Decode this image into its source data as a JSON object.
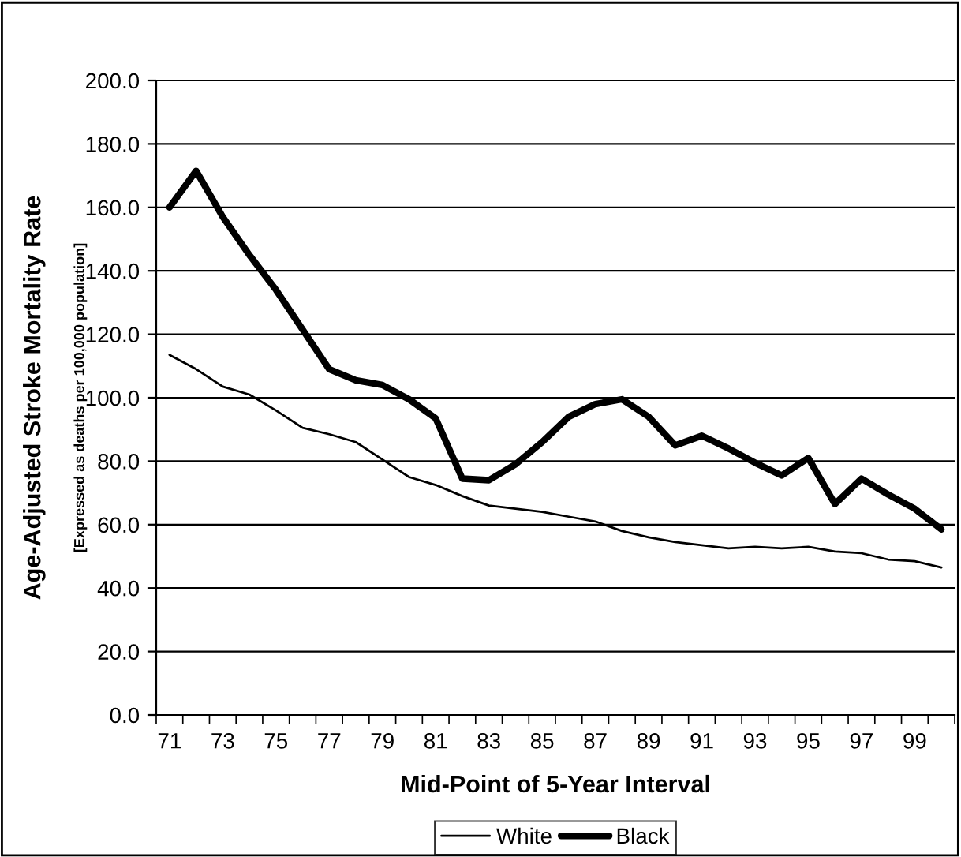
{
  "chart_data": {
    "type": "line",
    "xlabel": "Mid-Point of 5-Year Interval",
    "ylabel": "Age-Adjusted Stroke Mortality Rate",
    "subtitle": "[Expressed as deaths per 100,000 population]",
    "categories": [
      "71",
      null,
      "73",
      null,
      "75",
      null,
      "77",
      null,
      "79",
      null,
      "81",
      null,
      "83",
      null,
      "85",
      null,
      "87",
      null,
      "89",
      null,
      "91",
      null,
      "93",
      null,
      "95",
      null,
      "97",
      null,
      "99",
      null
    ],
    "series": [
      {
        "name": "White",
        "color": "#000000",
        "values": [
          113.5,
          109,
          103.5,
          101,
          96,
          90.5,
          88.5,
          86,
          80.5,
          75,
          72.5,
          69,
          66,
          65,
          64,
          62.5,
          61,
          58,
          56,
          54.5,
          53.5,
          52.5,
          53,
          52.5,
          53,
          51.5,
          51,
          49,
          48.5,
          46.5
        ]
      },
      {
        "name": "Black",
        "color": "#000000",
        "values": [
          160,
          171.5,
          157,
          145,
          134,
          121.5,
          109,
          105.5,
          104,
          99.5,
          93.5,
          74.5,
          74,
          79,
          86,
          94,
          98,
          99.5,
          94,
          85,
          88,
          84,
          79.5,
          75.5,
          81,
          66.5,
          74.5,
          69.5,
          65,
          58.5
        ]
      }
    ],
    "ylim": [
      0,
      200
    ],
    "yticks": [
      {
        "value": 0,
        "label": "0.0"
      },
      {
        "value": 20,
        "label": "20.0"
      },
      {
        "value": 40,
        "label": "40.0"
      },
      {
        "value": 60,
        "label": "60.0"
      },
      {
        "value": 80,
        "label": "80.0"
      },
      {
        "value": 100,
        "label": "100.0"
      },
      {
        "value": 120,
        "label": "120.0"
      },
      {
        "value": 140,
        "label": "140.0"
      },
      {
        "value": 160,
        "label": "160.0"
      },
      {
        "value": 180,
        "label": "180.0"
      },
      {
        "value": 200,
        "label": "200.0"
      }
    ],
    "grid": "y",
    "legend": "bottom",
    "marker": "none",
    "line_style": "solid"
  }
}
